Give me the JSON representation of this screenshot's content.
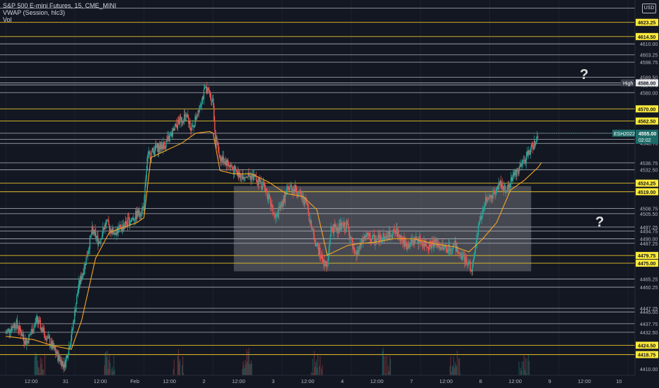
{
  "header": {
    "symbol_line": "S&P 500 E-mini Futures, 15, CME_MINI",
    "vwap_line": "VWAP (Session, hlc3)",
    "vol_line": "Vol"
  },
  "currency_badge": "USD",
  "question_marks": [
    "?",
    "?"
  ],
  "colors": {
    "background": "#131722",
    "up_candle": "#26a69a",
    "down_candle": "#ef5350",
    "vwap": "#f5a623",
    "yellow_level": "#e6c229",
    "white_level": "#c9ccd4",
    "tag_yellow": "#ffeb3b",
    "range_box": "rgba(200,200,205,0.28)",
    "current_price_tag": "#1d6b68"
  },
  "chart_data": {
    "type": "candlestick",
    "title": "S&P 500 E-mini Futures, 15, CME_MINI",
    "indicators": [
      "VWAP (Session, hlc3)",
      "Vol"
    ],
    "currency": "USD",
    "ylim": [
      4406,
      4637
    ],
    "x_ticks": [
      "12:00",
      "31",
      "12:00",
      "Feb",
      "12:00",
      "2",
      "12:00",
      "3",
      "12:00",
      "4",
      "12:00",
      "7",
      "12:00",
      "8",
      "12:00",
      "9",
      "12:00",
      "10"
    ],
    "y_ticks": [
      "4610.00",
      "4603.25",
      "4598.75",
      "4589.50",
      "4584.75",
      "4580.00",
      "4551.25",
      "4548.75",
      "4536.75",
      "4532.50",
      "4508.75",
      "4505.50",
      "4497.25",
      "4494.75",
      "4490.00",
      "4487.25",
      "4465.25",
      "4460.25",
      "4447.25",
      "4445.00",
      "4437.75",
      "4432.50",
      "4410.00"
    ],
    "levels_yellow": [
      4623.25,
      4614.5,
      4570.0,
      4562.5,
      4524.25,
      4519.0,
      4479.75,
      4475.0,
      4424.5,
      4418.75
    ],
    "levels_white": [
      4637.5,
      4632.0,
      4610.0,
      4603.25,
      4598.75,
      4589.5,
      4586.0,
      4584.75,
      4580.0,
      4555.0,
      4551.25,
      4548.75,
      4536.75,
      4532.5,
      4508.75,
      4505.5,
      4497.25,
      4494.75,
      4490.0,
      4487.25,
      4465.25,
      4460.25,
      4447.25,
      4445.0,
      4437.75,
      4432.5
    ],
    "price_tags": [
      {
        "value": 4623.25,
        "label": "4623.25",
        "style": "yellow"
      },
      {
        "value": 4614.5,
        "label": "4614.50",
        "style": "yellow"
      },
      {
        "value": 4586.0,
        "label": "4586.00",
        "style": "white"
      },
      {
        "value": 4570.0,
        "label": "4570.00",
        "style": "yellow"
      },
      {
        "value": 4562.5,
        "label": "4562.50",
        "style": "yellow"
      },
      {
        "value": 4524.25,
        "label": "4524.25",
        "style": "yellow"
      },
      {
        "value": 4519.0,
        "label": "4519.00",
        "style": "yellow"
      },
      {
        "value": 4479.75,
        "label": "4479.75",
        "style": "yellow"
      },
      {
        "value": 4475.0,
        "label": "4475.00",
        "style": "yellow"
      },
      {
        "value": 4424.5,
        "label": "4424.50",
        "style": "yellow"
      },
      {
        "value": 4418.75,
        "label": "4418.75",
        "style": "yellow"
      }
    ],
    "high_marker": {
      "label": "High",
      "value": 4586.0
    },
    "current_price": {
      "symbol": "ESH2022",
      "value": "4555.00",
      "countdown": "02:02",
      "price": 4555.0
    },
    "range_box": {
      "from_session": 3.3,
      "to_session": 7.6,
      "top": 4522.5,
      "bottom": 4470.0
    },
    "price_path": [
      [
        0.0,
        4432
      ],
      [
        0.15,
        4438
      ],
      [
        0.3,
        4426
      ],
      [
        0.45,
        4440
      ],
      [
        0.6,
        4429
      ],
      [
        0.75,
        4418
      ],
      [
        0.85,
        4412
      ],
      [
        0.95,
        4430
      ],
      [
        1.05,
        4460
      ],
      [
        1.15,
        4475
      ],
      [
        1.25,
        4495
      ],
      [
        1.35,
        4488
      ],
      [
        1.45,
        4500
      ],
      [
        1.55,
        4494
      ],
      [
        1.65,
        4496
      ],
      [
        1.75,
        4500
      ],
      [
        1.85,
        4503
      ],
      [
        1.95,
        4507
      ],
      [
        2.0,
        4510
      ],
      [
        2.05,
        4540
      ],
      [
        2.15,
        4545
      ],
      [
        2.3,
        4548
      ],
      [
        2.4,
        4554
      ],
      [
        2.5,
        4562
      ],
      [
        2.6,
        4566
      ],
      [
        2.7,
        4557
      ],
      [
        2.8,
        4572
      ],
      [
        2.9,
        4583
      ],
      [
        3.0,
        4575
      ],
      [
        3.03,
        4553
      ],
      [
        3.1,
        4540
      ],
      [
        3.2,
        4537
      ],
      [
        3.35,
        4530
      ],
      [
        3.5,
        4529
      ],
      [
        3.6,
        4528
      ],
      [
        3.75,
        4522
      ],
      [
        3.9,
        4502
      ],
      [
        4.0,
        4512
      ],
      [
        4.1,
        4522
      ],
      [
        4.2,
        4520
      ],
      [
        4.35,
        4512
      ],
      [
        4.45,
        4492
      ],
      [
        4.55,
        4480
      ],
      [
        4.65,
        4472
      ],
      [
        4.7,
        4496
      ],
      [
        4.85,
        4497
      ],
      [
        4.95,
        4498
      ],
      [
        5.05,
        4478
      ],
      [
        5.2,
        4492
      ],
      [
        5.35,
        4489
      ],
      [
        5.5,
        4492
      ],
      [
        5.65,
        4494
      ],
      [
        5.8,
        4486
      ],
      [
        5.95,
        4490
      ],
      [
        6.1,
        4486
      ],
      [
        6.2,
        4488
      ],
      [
        6.35,
        4484
      ],
      [
        6.5,
        4486
      ],
      [
        6.6,
        4478
      ],
      [
        6.75,
        4472
      ],
      [
        6.85,
        4500
      ],
      [
        6.95,
        4514
      ],
      [
        7.05,
        4518
      ],
      [
        7.15,
        4524
      ],
      [
        7.25,
        4520
      ],
      [
        7.35,
        4530
      ],
      [
        7.45,
        4534
      ],
      [
        7.55,
        4542
      ],
      [
        7.65,
        4548
      ],
      [
        7.7,
        4555
      ]
    ],
    "vwap_path": [
      [
        0.0,
        4430
      ],
      [
        0.4,
        4428
      ],
      [
        0.7,
        4424
      ],
      [
        0.95,
        4422
      ],
      [
        1.1,
        4440
      ],
      [
        1.3,
        4478
      ],
      [
        1.5,
        4494
      ],
      [
        1.7,
        4497
      ],
      [
        1.9,
        4500
      ],
      [
        2.0,
        4503
      ],
      [
        2.1,
        4540
      ],
      [
        2.35,
        4545
      ],
      [
        2.55,
        4549
      ],
      [
        2.75,
        4555
      ],
      [
        2.95,
        4556
      ],
      [
        3.0,
        4555
      ],
      [
        3.1,
        4532
      ],
      [
        3.3,
        4530
      ],
      [
        3.55,
        4530
      ],
      [
        3.8,
        4525
      ],
      [
        4.05,
        4518
      ],
      [
        4.3,
        4516
      ],
      [
        4.5,
        4508
      ],
      [
        4.65,
        4480
      ],
      [
        4.8,
        4483
      ],
      [
        4.95,
        4486
      ],
      [
        5.1,
        4487
      ],
      [
        5.35,
        4488
      ],
      [
        5.6,
        4490
      ],
      [
        5.9,
        4490
      ],
      [
        6.2,
        4487
      ],
      [
        6.5,
        4485
      ],
      [
        6.7,
        4482
      ],
      [
        6.9,
        4490
      ],
      [
        7.1,
        4500
      ],
      [
        7.3,
        4520
      ],
      [
        7.5,
        4526
      ],
      [
        7.7,
        4534
      ],
      [
        7.75,
        4537
      ]
    ]
  }
}
